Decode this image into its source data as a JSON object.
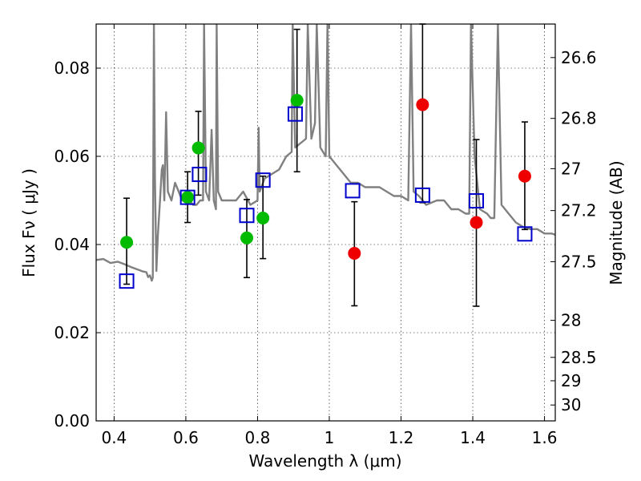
{
  "chart_data": {
    "type": "scatter",
    "xlabel": "Wavelength  λ (μm)",
    "ylabel": "Flux  Fν  ( μJy )",
    "y2label": "Magnitude (AB)",
    "xlim": [
      0.35,
      1.63
    ],
    "ylim": [
      0.0,
      0.09
    ],
    "grid": true,
    "x_ticks": [
      0.4,
      0.6,
      0.8,
      1.0,
      1.2,
      1.4,
      1.6
    ],
    "x_tick_labels": [
      "0.4",
      "0.6",
      "0.8",
      "1",
      "1.2",
      "1.4",
      "1.6"
    ],
    "y_ticks": [
      0.0,
      0.02,
      0.04,
      0.06,
      0.08
    ],
    "y_tick_labels": [
      "0.00",
      "0.02",
      "0.04",
      "0.06",
      "0.08"
    ],
    "y2_ticks": [
      {
        "label": "26.6",
        "flux": 0.0824
      },
      {
        "label": "26.8",
        "flux": 0.0686
      },
      {
        "label": "27",
        "flux": 0.0572
      },
      {
        "label": "27.2",
        "flux": 0.0477
      },
      {
        "label": "27.5",
        "flux": 0.0361
      },
      {
        "label": "28",
        "flux": 0.0228
      },
      {
        "label": "28.5",
        "flux": 0.0144
      },
      {
        "label": "29",
        "flux": 0.0091
      },
      {
        "label": "30",
        "flux": 0.0036
      }
    ],
    "series": [
      {
        "name": "model spectrum",
        "kind": "line",
        "color": "#808080",
        "points": [
          [
            0.35,
            0.0365
          ],
          [
            0.37,
            0.0367
          ],
          [
            0.39,
            0.0358
          ],
          [
            0.41,
            0.0361
          ],
          [
            0.43,
            0.0355
          ],
          [
            0.45,
            0.0348
          ],
          [
            0.47,
            0.0342
          ],
          [
            0.48,
            0.0339
          ],
          [
            0.49,
            0.0337
          ],
          [
            0.495,
            0.0326
          ],
          [
            0.5,
            0.033
          ],
          [
            0.505,
            0.0318
          ],
          [
            0.508,
            0.0325
          ],
          [
            0.511,
            0.09
          ],
          [
            0.514,
            0.055
          ],
          [
            0.518,
            0.034
          ],
          [
            0.522,
            0.042
          ],
          [
            0.528,
            0.05
          ],
          [
            0.533,
            0.057
          ],
          [
            0.536,
            0.058
          ],
          [
            0.54,
            0.05
          ],
          [
            0.545,
            0.07
          ],
          [
            0.55,
            0.052
          ],
          [
            0.56,
            0.05
          ],
          [
            0.57,
            0.054
          ],
          [
            0.58,
            0.052
          ],
          [
            0.59,
            0.05
          ],
          [
            0.6,
            0.052
          ],
          [
            0.61,
            0.05
          ],
          [
            0.62,
            0.049
          ],
          [
            0.63,
            0.049
          ],
          [
            0.64,
            0.05
          ],
          [
            0.648,
            0.05
          ],
          [
            0.651,
            0.09
          ],
          [
            0.656,
            0.052
          ],
          [
            0.665,
            0.05
          ],
          [
            0.672,
            0.066
          ],
          [
            0.678,
            0.05
          ],
          [
            0.684,
            0.048
          ],
          [
            0.686,
            0.09
          ],
          [
            0.69,
            0.052
          ],
          [
            0.7,
            0.05
          ],
          [
            0.72,
            0.05
          ],
          [
            0.74,
            0.05
          ],
          [
            0.76,
            0.052
          ],
          [
            0.78,
            0.049
          ],
          [
            0.8,
            0.05
          ],
          [
            0.803,
            0.0665
          ],
          [
            0.806,
            0.052
          ],
          [
            0.82,
            0.055
          ],
          [
            0.84,
            0.056
          ],
          [
            0.86,
            0.057
          ],
          [
            0.88,
            0.06
          ],
          [
            0.895,
            0.061
          ],
          [
            0.898,
            0.09
          ],
          [
            0.905,
            0.062
          ],
          [
            0.92,
            0.063
          ],
          [
            0.935,
            0.064
          ],
          [
            0.94,
            0.09
          ],
          [
            0.95,
            0.064
          ],
          [
            0.96,
            0.0675
          ],
          [
            0.965,
            0.09
          ],
          [
            0.975,
            0.062
          ],
          [
            0.99,
            0.06
          ],
          [
            0.995,
            0.09
          ],
          [
            1.0,
            0.06
          ],
          [
            1.02,
            0.058
          ],
          [
            1.04,
            0.056
          ],
          [
            1.06,
            0.054
          ],
          [
            1.08,
            0.054
          ],
          [
            1.1,
            0.053
          ],
          [
            1.12,
            0.053
          ],
          [
            1.14,
            0.053
          ],
          [
            1.16,
            0.052
          ],
          [
            1.18,
            0.051
          ],
          [
            1.2,
            0.051
          ],
          [
            1.22,
            0.05
          ],
          [
            1.228,
            0.09
          ],
          [
            1.235,
            0.052
          ],
          [
            1.25,
            0.051
          ],
          [
            1.27,
            0.049
          ],
          [
            1.3,
            0.05
          ],
          [
            1.32,
            0.05
          ],
          [
            1.34,
            0.048
          ],
          [
            1.36,
            0.048
          ],
          [
            1.38,
            0.047
          ],
          [
            1.39,
            0.047
          ],
          [
            1.395,
            0.09
          ],
          [
            1.405,
            0.06
          ],
          [
            1.42,
            0.048
          ],
          [
            1.44,
            0.047
          ],
          [
            1.45,
            0.046
          ],
          [
            1.46,
            0.046
          ],
          [
            1.47,
            0.09
          ],
          [
            1.48,
            0.049
          ],
          [
            1.5,
            0.047
          ],
          [
            1.52,
            0.045
          ],
          [
            1.54,
            0.044
          ],
          [
            1.56,
            0.0435
          ],
          [
            1.58,
            0.0435
          ],
          [
            1.6,
            0.0425
          ],
          [
            1.62,
            0.0425
          ],
          [
            1.63,
            0.0422
          ]
        ]
      },
      {
        "name": "observed (green)",
        "kind": "points",
        "color": "#00bb00",
        "points": [
          {
            "x": 0.435,
            "y": 0.0405,
            "yerr_low": 0.031,
            "yerr_high": 0.0505
          },
          {
            "x": 0.605,
            "y": 0.0507,
            "yerr_low": 0.045,
            "yerr_high": 0.0565
          },
          {
            "x": 0.635,
            "y": 0.0619,
            "yerr_low": 0.0512,
            "yerr_high": 0.0702
          },
          {
            "x": 0.77,
            "y": 0.0415,
            "yerr_low": 0.0325,
            "yerr_high": 0.0502
          },
          {
            "x": 0.815,
            "y": 0.046,
            "yerr_low": 0.0368,
            "yerr_high": 0.0555
          },
          {
            "x": 0.91,
            "y": 0.0727,
            "yerr_low": 0.0565,
            "yerr_high": 0.0888
          }
        ]
      },
      {
        "name": "observed (red)",
        "kind": "points",
        "color": "#ee0000",
        "points": [
          {
            "x": 1.07,
            "y": 0.038,
            "yerr_low": 0.0261,
            "yerr_high": 0.0497
          },
          {
            "x": 1.26,
            "y": 0.0717,
            "yerr_low": 0.0495,
            "yerr_high": 0.09
          },
          {
            "x": 1.41,
            "y": 0.045,
            "yerr_low": 0.026,
            "yerr_high": 0.0638
          },
          {
            "x": 1.545,
            "y": 0.0555,
            "yerr_low": 0.0434,
            "yerr_high": 0.0678
          }
        ]
      },
      {
        "name": "model bandpass",
        "kind": "squares",
        "color": "#0000cc",
        "points": [
          {
            "x": 0.435,
            "y": 0.0317
          },
          {
            "x": 0.605,
            "y": 0.0507
          },
          {
            "x": 0.638,
            "y": 0.0559
          },
          {
            "x": 0.77,
            "y": 0.0466
          },
          {
            "x": 0.815,
            "y": 0.0546
          },
          {
            "x": 0.905,
            "y": 0.0696
          },
          {
            "x": 1.065,
            "y": 0.0522
          },
          {
            "x": 1.26,
            "y": 0.0512
          },
          {
            "x": 1.41,
            "y": 0.0499
          },
          {
            "x": 1.545,
            "y": 0.0424
          }
        ]
      }
    ]
  }
}
